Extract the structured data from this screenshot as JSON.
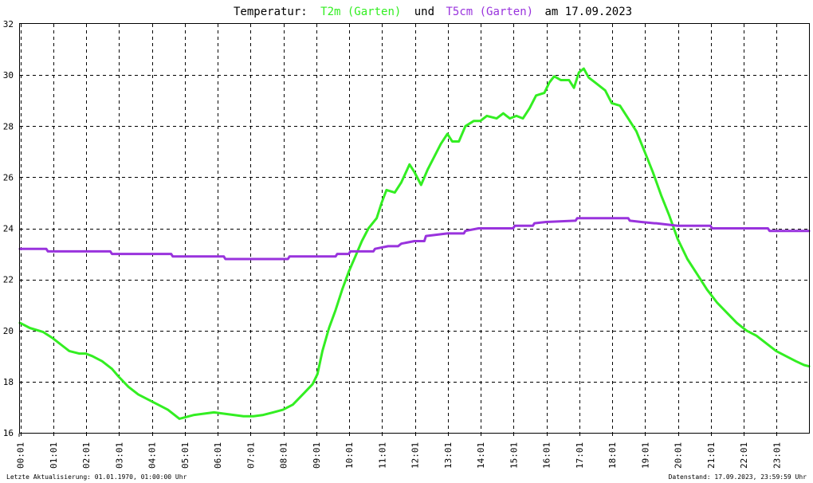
{
  "title": {
    "prefix": "Temperatur:",
    "series1": "T2m (Garten)",
    "joiner": "und",
    "series2": "T5cm (Garten)",
    "suffix": "am 17.09.2023"
  },
  "footer": {
    "left": "Letzte Aktualisierung: 01.01.1970, 01:00:00 Uhr",
    "right": "Datenstand: 17.09.2023, 23:59:59 Uhr"
  },
  "colors": {
    "t2m": "#33ee22",
    "t5cm": "#9933dd",
    "grid": "#000000",
    "background": "#ffffff"
  },
  "chart_data": {
    "type": "line",
    "title": "Temperatur: T2m (Garten) und T5cm (Garten) am 17.09.2023",
    "xlabel": "",
    "ylabel": "",
    "xlim": [
      0.0,
      24.0
    ],
    "ylim": [
      16,
      32
    ],
    "yticks": [
      16,
      18,
      20,
      22,
      24,
      26,
      28,
      30,
      32
    ],
    "xticks": [
      0.0167,
      1.0167,
      2.0167,
      3.0167,
      4.0167,
      5.0167,
      6.0167,
      7.0167,
      8.0167,
      9.0167,
      10.0167,
      11.0167,
      12.0167,
      13.0167,
      14.0167,
      15.0167,
      16.0167,
      17.0167,
      18.0167,
      19.0167,
      20.0167,
      21.0167,
      22.0167,
      23.0167
    ],
    "xtick_labels": [
      "00:01",
      "01:01",
      "02:01",
      "03:01",
      "04:01",
      "05:01",
      "06:01",
      "07:01",
      "08:01",
      "09:01",
      "10:01",
      "11:01",
      "12:01",
      "13:01",
      "14:01",
      "15:01",
      "16:01",
      "17:01",
      "18:01",
      "19:01",
      "20:01",
      "21:01",
      "22:01",
      "23:01"
    ],
    "grid": true,
    "series": [
      {
        "name": "T2m (Garten)",
        "color": "#33ee22",
        "points": [
          [
            0.0,
            20.3
          ],
          [
            0.3,
            20.1
          ],
          [
            0.7,
            19.95
          ],
          [
            1.0,
            19.7
          ],
          [
            1.3,
            19.4
          ],
          [
            1.5,
            19.2
          ],
          [
            1.8,
            19.1
          ],
          [
            2.0,
            19.1
          ],
          [
            2.2,
            19.0
          ],
          [
            2.5,
            18.8
          ],
          [
            2.8,
            18.5
          ],
          [
            3.0,
            18.2
          ],
          [
            3.3,
            17.8
          ],
          [
            3.6,
            17.5
          ],
          [
            3.9,
            17.3
          ],
          [
            4.2,
            17.1
          ],
          [
            4.5,
            16.9
          ],
          [
            4.7,
            16.7
          ],
          [
            4.85,
            16.55
          ],
          [
            5.0,
            16.6
          ],
          [
            5.3,
            16.7
          ],
          [
            5.6,
            16.75
          ],
          [
            5.9,
            16.8
          ],
          [
            6.2,
            16.75
          ],
          [
            6.5,
            16.7
          ],
          [
            6.8,
            16.65
          ],
          [
            7.1,
            16.65
          ],
          [
            7.4,
            16.7
          ],
          [
            7.7,
            16.8
          ],
          [
            8.0,
            16.9
          ],
          [
            8.3,
            17.1
          ],
          [
            8.6,
            17.5
          ],
          [
            8.9,
            17.9
          ],
          [
            9.05,
            18.3
          ],
          [
            9.2,
            19.2
          ],
          [
            9.4,
            20.1
          ],
          [
            9.6,
            20.8
          ],
          [
            9.8,
            21.6
          ],
          [
            10.0,
            22.3
          ],
          [
            10.2,
            22.9
          ],
          [
            10.4,
            23.5
          ],
          [
            10.6,
            24.0
          ],
          [
            10.85,
            24.4
          ],
          [
            11.0,
            25.0
          ],
          [
            11.15,
            25.5
          ],
          [
            11.4,
            25.4
          ],
          [
            11.6,
            25.8
          ],
          [
            11.85,
            26.5
          ],
          [
            12.0,
            26.2
          ],
          [
            12.2,
            25.7
          ],
          [
            12.4,
            26.3
          ],
          [
            12.6,
            26.8
          ],
          [
            12.8,
            27.3
          ],
          [
            13.0,
            27.7
          ],
          [
            13.15,
            27.4
          ],
          [
            13.35,
            27.4
          ],
          [
            13.55,
            28.0
          ],
          [
            13.8,
            28.2
          ],
          [
            14.0,
            28.2
          ],
          [
            14.2,
            28.4
          ],
          [
            14.5,
            28.3
          ],
          [
            14.7,
            28.5
          ],
          [
            14.9,
            28.3
          ],
          [
            15.1,
            28.4
          ],
          [
            15.3,
            28.3
          ],
          [
            15.5,
            28.7
          ],
          [
            15.7,
            29.2
          ],
          [
            15.95,
            29.3
          ],
          [
            16.1,
            29.7
          ],
          [
            16.25,
            29.95
          ],
          [
            16.45,
            29.8
          ],
          [
            16.7,
            29.8
          ],
          [
            16.85,
            29.5
          ],
          [
            17.0,
            30.1
          ],
          [
            17.15,
            30.25
          ],
          [
            17.3,
            29.9
          ],
          [
            17.5,
            29.7
          ],
          [
            17.8,
            29.4
          ],
          [
            18.0,
            28.9
          ],
          [
            18.25,
            28.8
          ],
          [
            18.5,
            28.3
          ],
          [
            18.75,
            27.8
          ],
          [
            19.0,
            27.0
          ],
          [
            19.25,
            26.2
          ],
          [
            19.5,
            25.3
          ],
          [
            19.75,
            24.5
          ],
          [
            20.0,
            23.6
          ],
          [
            20.3,
            22.8
          ],
          [
            20.6,
            22.2
          ],
          [
            20.9,
            21.6
          ],
          [
            21.2,
            21.1
          ],
          [
            21.5,
            20.7
          ],
          [
            21.8,
            20.3
          ],
          [
            22.1,
            20.0
          ],
          [
            22.4,
            19.8
          ],
          [
            22.7,
            19.5
          ],
          [
            23.0,
            19.2
          ],
          [
            23.3,
            19.0
          ],
          [
            23.6,
            18.8
          ],
          [
            23.85,
            18.65
          ],
          [
            24.0,
            18.6
          ]
        ]
      },
      {
        "name": "T5cm (Garten)",
        "color": "#9933dd",
        "points": [
          [
            0.0,
            23.2
          ],
          [
            0.8,
            23.2
          ],
          [
            0.85,
            23.1
          ],
          [
            2.75,
            23.1
          ],
          [
            2.8,
            23.0
          ],
          [
            4.6,
            23.0
          ],
          [
            4.65,
            22.9
          ],
          [
            6.2,
            22.9
          ],
          [
            6.25,
            22.8
          ],
          [
            8.15,
            22.8
          ],
          [
            8.2,
            22.9
          ],
          [
            9.6,
            22.9
          ],
          [
            9.65,
            23.0
          ],
          [
            10.0,
            23.0
          ],
          [
            10.05,
            23.1
          ],
          [
            10.75,
            23.1
          ],
          [
            10.8,
            23.2
          ],
          [
            11.2,
            23.3
          ],
          [
            11.5,
            23.3
          ],
          [
            11.6,
            23.4
          ],
          [
            12.0,
            23.5
          ],
          [
            12.3,
            23.5
          ],
          [
            12.35,
            23.7
          ],
          [
            13.0,
            23.8
          ],
          [
            13.5,
            23.8
          ],
          [
            13.55,
            23.9
          ],
          [
            13.95,
            24.0
          ],
          [
            15.0,
            24.0
          ],
          [
            15.05,
            24.1
          ],
          [
            15.6,
            24.1
          ],
          [
            15.65,
            24.2
          ],
          [
            16.0,
            24.25
          ],
          [
            16.9,
            24.3
          ],
          [
            16.95,
            24.4
          ],
          [
            17.5,
            24.4
          ],
          [
            18.5,
            24.4
          ],
          [
            18.55,
            24.3
          ],
          [
            18.9,
            24.25
          ],
          [
            19.3,
            24.2
          ],
          [
            19.35,
            24.2
          ],
          [
            20.0,
            24.1
          ],
          [
            21.0,
            24.1
          ],
          [
            21.05,
            24.0
          ],
          [
            22.75,
            24.0
          ],
          [
            22.8,
            23.9
          ],
          [
            24.0,
            23.9
          ]
        ]
      }
    ]
  }
}
